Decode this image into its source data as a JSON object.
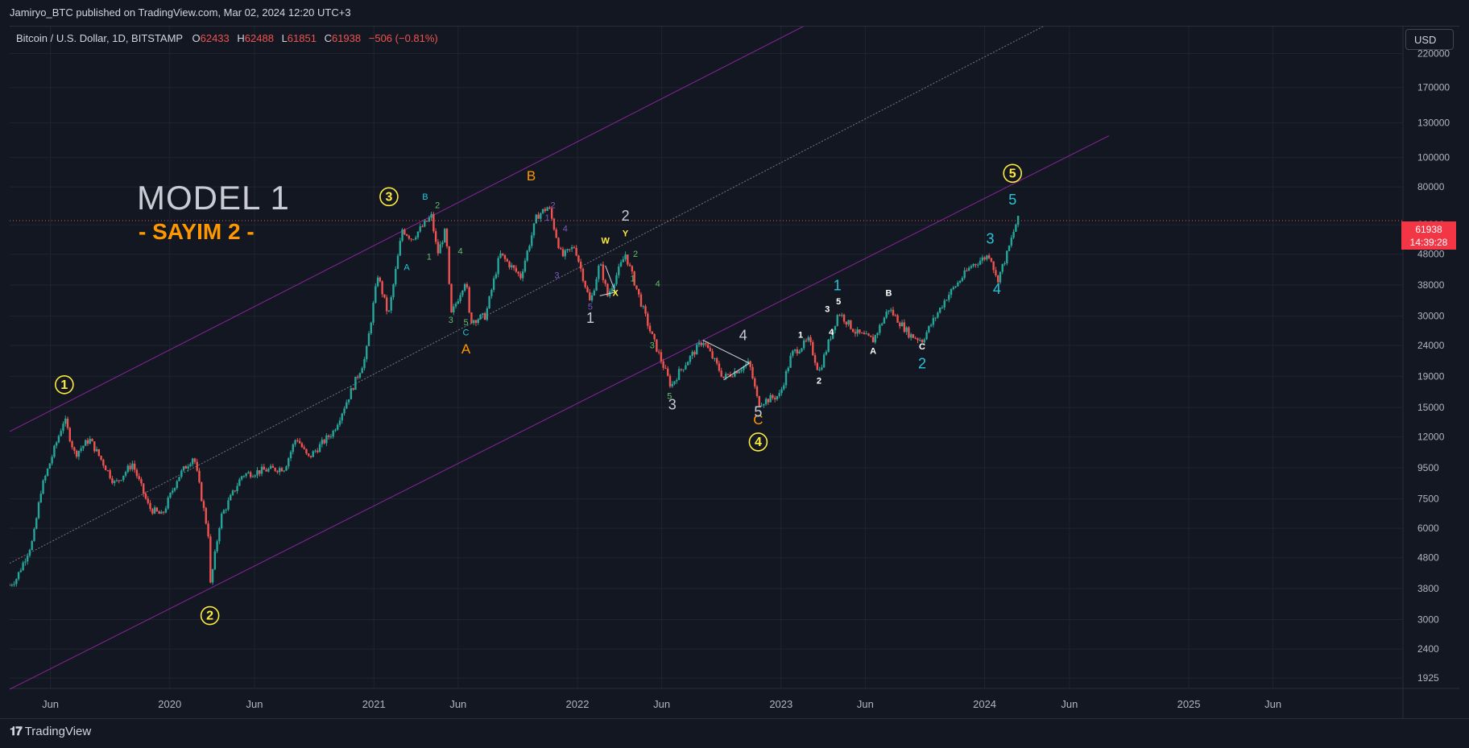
{
  "header": {
    "publish_line": "Jamiryo_BTC published on TradingView.com, Mar 02, 2024 12:20 UTC+3"
  },
  "legend": {
    "symbol": "Bitcoin / U.S. Dollar, 1D, BITSTAMP",
    "open_label": "O",
    "open": "62433",
    "high_label": "H",
    "high": "62488",
    "low_label": "L",
    "low": "61851",
    "close_label": "C",
    "close": "61938",
    "change": "−506 (−0.81%)"
  },
  "currency_button": "USD",
  "price_tag": {
    "price": "61938",
    "countdown": "14:39:28"
  },
  "overlay": {
    "title": "MODEL 1",
    "subtitle": "- SAYIM 2 -"
  },
  "footer": {
    "brand": "TradingView",
    "brand_icon": "tradingview-logo-icon"
  },
  "colors": {
    "background": "#131722",
    "up": "#26a69a",
    "down": "#ef5350",
    "channel": "#9c27b0",
    "accent": "#ff9800",
    "circle": "#ffeb3b",
    "cyan": "#26c6da"
  },
  "chart_data": {
    "type": "candlestick",
    "title": "Bitcoin / U.S. Dollar, 1D, BITSTAMP",
    "y_scale": "log",
    "ylabel": "USD",
    "y_ticks": [
      1925,
      2400,
      3000,
      3800,
      4800,
      6000,
      7500,
      9500,
      12000,
      15000,
      19000,
      24000,
      30000,
      38000,
      48000,
      60000,
      80000,
      100000,
      130000,
      170000,
      220000
    ],
    "y_tick_labels": [
      "1925",
      "2400",
      "3000",
      "3800",
      "4800",
      "6000",
      "7500",
      "9500",
      "12000",
      "15000",
      "19000",
      "24000",
      "30000",
      "38000",
      "48000",
      "60000",
      "80000",
      "100000",
      "130000",
      "170000",
      "220000"
    ],
    "x_ticks": [
      {
        "date": "2019-06-01",
        "label": "Jun"
      },
      {
        "date": "2020-01-01",
        "label": "2020"
      },
      {
        "date": "2020-06-01",
        "label": "Jun"
      },
      {
        "date": "2021-01-01",
        "label": "2021"
      },
      {
        "date": "2021-06-01",
        "label": "Jun"
      },
      {
        "date": "2022-01-01",
        "label": "2022"
      },
      {
        "date": "2022-06-01",
        "label": "Jun"
      },
      {
        "date": "2023-01-01",
        "label": "2023"
      },
      {
        "date": "2023-06-01",
        "label": "Jun"
      },
      {
        "date": "2024-01-01",
        "label": "2024"
      },
      {
        "date": "2024-06-01",
        "label": "Jun"
      },
      {
        "date": "2025-01-01",
        "label": "2025"
      },
      {
        "date": "2025-06-01",
        "label": "Jun"
      }
    ],
    "x_range": [
      "2019-03-20",
      "2026-01-20"
    ],
    "last_price": 61938,
    "price_path": [
      [
        "2019-03-20",
        3900
      ],
      [
        "2019-04-01",
        4100
      ],
      [
        "2019-05-01",
        5500
      ],
      [
        "2019-05-15",
        8000
      ],
      [
        "2019-06-26",
        13800
      ],
      [
        "2019-07-15",
        10500
      ],
      [
        "2019-08-10",
        11800
      ],
      [
        "2019-09-25",
        8400
      ],
      [
        "2019-10-26",
        9800
      ],
      [
        "2019-11-25",
        7000
      ],
      [
        "2019-12-18",
        6600
      ],
      [
        "2020-01-15",
        8800
      ],
      [
        "2020-02-13",
        10400
      ],
      [
        "2020-03-12",
        5500
      ],
      [
        "2020-03-13",
        3800
      ],
      [
        "2020-04-01",
        6500
      ],
      [
        "2020-05-10",
        9000
      ],
      [
        "2020-06-15",
        9300
      ],
      [
        "2020-07-25",
        9500
      ],
      [
        "2020-08-15",
        12000
      ],
      [
        "2020-09-05",
        10200
      ],
      [
        "2020-10-20",
        12500
      ],
      [
        "2020-11-15",
        16000
      ],
      [
        "2020-12-17",
        22000
      ],
      [
        "2021-01-08",
        41000
      ],
      [
        "2021-01-27",
        30000
      ],
      [
        "2021-02-21",
        58000
      ],
      [
        "2021-03-10",
        54000
      ],
      [
        "2021-04-14",
        64000
      ],
      [
        "2021-04-25",
        48000
      ],
      [
        "2021-05-10",
        58000
      ],
      [
        "2021-05-19",
        30000
      ],
      [
        "2021-06-15",
        40000
      ],
      [
        "2021-06-22",
        29000
      ],
      [
        "2021-07-20",
        30000
      ],
      [
        "2021-08-15",
        48000
      ],
      [
        "2021-09-21",
        40500
      ],
      [
        "2021-10-20",
        64000
      ],
      [
        "2021-11-10",
        69000
      ],
      [
        "2021-12-04",
        47000
      ],
      [
        "2021-12-27",
        51000
      ],
      [
        "2022-01-24",
        33000
      ],
      [
        "2022-02-10",
        45000
      ],
      [
        "2022-02-24",
        35000
      ],
      [
        "2022-03-28",
        48000
      ],
      [
        "2022-05-12",
        26500
      ],
      [
        "2022-06-18",
        17600
      ],
      [
        "2022-07-01",
        19500
      ],
      [
        "2022-08-14",
        25000
      ],
      [
        "2022-09-20",
        18800
      ],
      [
        "2022-11-05",
        21000
      ],
      [
        "2022-11-21",
        15500
      ],
      [
        "2022-12-30",
        16500
      ],
      [
        "2023-01-20",
        22500
      ],
      [
        "2023-02-20",
        25000
      ],
      [
        "2023-03-10",
        19600
      ],
      [
        "2023-04-14",
        31000
      ],
      [
        "2023-05-15",
        26500
      ],
      [
        "2023-06-15",
        25000
      ],
      [
        "2023-07-13",
        31800
      ],
      [
        "2023-08-20",
        26000
      ],
      [
        "2023-09-11",
        25000
      ],
      [
        "2023-10-24",
        34500
      ],
      [
        "2023-12-08",
        44000
      ],
      [
        "2024-01-11",
        48000
      ],
      [
        "2024-01-23",
        39000
      ],
      [
        "2024-02-10",
        48000
      ],
      [
        "2024-02-28",
        62000
      ],
      [
        "2024-03-01",
        62400
      ],
      [
        "2024-03-02",
        61938
      ]
    ],
    "channels": [
      {
        "name": "upper",
        "points": [
          [
            "2019-03-20",
            12500
          ],
          [
            "2021-04-14",
            64000
          ]
        ]
      },
      {
        "name": "middle",
        "points": [
          [
            "2019-03-20",
            4600
          ],
          [
            "2021-07-20",
            30000
          ]
        ]
      },
      {
        "name": "lower",
        "points": [
          [
            "2020-03-13",
            3800
          ],
          [
            "2022-08-14",
            25000
          ]
        ]
      }
    ],
    "wave_labels": [
      {
        "text": "1",
        "date": "2019-06-26",
        "price": 17300,
        "style": "circle"
      },
      {
        "text": "2",
        "date": "2020-03-13",
        "price": 3000,
        "style": "circle"
      },
      {
        "text": "3",
        "date": "2021-01-28",
        "price": 72000,
        "style": "circle"
      },
      {
        "text": "4",
        "date": "2022-11-21",
        "price": 11200,
        "style": "circle"
      },
      {
        "text": "5",
        "date": "2024-02-20",
        "price": 86000,
        "style": "circle"
      },
      {
        "text": "A",
        "date": "2021-06-15",
        "price": 22600,
        "style": "orange"
      },
      {
        "text": "B",
        "date": "2021-10-10",
        "price": 84000,
        "style": "orange"
      },
      {
        "text": "C",
        "date": "2022-11-21",
        "price": 13200,
        "style": "orange"
      },
      {
        "text": "1",
        "date": "2022-01-24",
        "price": 28500,
        "style": "white-lg"
      },
      {
        "text": "2",
        "date": "2022-03-28",
        "price": 62000,
        "style": "white-lg"
      },
      {
        "text": "3",
        "date": "2022-06-20",
        "price": 14800,
        "style": "white-lg"
      },
      {
        "text": "4",
        "date": "2022-10-25",
        "price": 25000,
        "style": "white-lg"
      },
      {
        "text": "5",
        "date": "2022-11-21",
        "price": 14000,
        "style": "white-lg"
      },
      {
        "text": "W",
        "date": "2022-02-20",
        "price": 52000,
        "style": "yellow-sm"
      },
      {
        "text": "X",
        "date": "2022-03-10",
        "price": 35000,
        "style": "yellow-sm"
      },
      {
        "text": "Y",
        "date": "2022-03-28",
        "price": 55000,
        "style": "yellow-sm"
      },
      {
        "text": "A",
        "date": "2021-03-01",
        "price": 42500,
        "style": "cyan-sm"
      },
      {
        "text": "B",
        "date": "2021-04-03",
        "price": 72500,
        "style": "cyan-sm"
      },
      {
        "text": "C",
        "date": "2021-06-15",
        "price": 25900,
        "style": "cyan-sm"
      },
      {
        "text": "2",
        "date": "2021-04-25",
        "price": 68000,
        "style": "green-sm"
      },
      {
        "text": "1",
        "date": "2021-04-10",
        "price": 46000,
        "style": "green-sm"
      },
      {
        "text": "4",
        "date": "2021-06-05",
        "price": 48000,
        "style": "green-sm"
      },
      {
        "text": "3",
        "date": "2021-05-19",
        "price": 28500,
        "style": "green-sm"
      },
      {
        "text": "5",
        "date": "2021-06-15",
        "price": 28000,
        "style": "green-sm"
      },
      {
        "text": "1",
        "date": "2021-11-08",
        "price": 62000,
        "style": "purple-sm"
      },
      {
        "text": "2",
        "date": "2021-11-18",
        "price": 68000,
        "style": "purple-sm"
      },
      {
        "text": "4",
        "date": "2021-12-10",
        "price": 57000,
        "style": "purple-sm"
      },
      {
        "text": "3",
        "date": "2021-11-25",
        "price": 40000,
        "style": "purple-sm"
      },
      {
        "text": "5",
        "date": "2022-01-24",
        "price": 31500,
        "style": "purple-sm"
      },
      {
        "text": "1",
        "date": "2022-04-10",
        "price": 39000,
        "style": "green-sm"
      },
      {
        "text": "2",
        "date": "2022-04-15",
        "price": 47000,
        "style": "green-sm"
      },
      {
        "text": "4",
        "date": "2022-05-25",
        "price": 37500,
        "style": "green-sm"
      },
      {
        "text": "3",
        "date": "2022-05-15",
        "price": 23500,
        "style": "green-sm"
      },
      {
        "text": "5",
        "date": "2022-06-15",
        "price": 16000,
        "style": "green-sm"
      },
      {
        "text": "1",
        "date": "2023-02-05",
        "price": 25500,
        "style": "white-sm"
      },
      {
        "text": "2",
        "date": "2023-03-10",
        "price": 18000,
        "style": "white-sm"
      },
      {
        "text": "3",
        "date": "2023-03-25",
        "price": 31000,
        "style": "white-sm"
      },
      {
        "text": "4",
        "date": "2023-04-01",
        "price": 26000,
        "style": "white-sm"
      },
      {
        "text": "5",
        "date": "2023-04-14",
        "price": 32800,
        "style": "white-sm"
      },
      {
        "text": "1",
        "date": "2023-04-12",
        "price": 36500,
        "style": "cyan-lg"
      },
      {
        "text": "A",
        "date": "2023-06-15",
        "price": 22500,
        "style": "white-sm"
      },
      {
        "text": "B",
        "date": "2023-07-13",
        "price": 35000,
        "style": "white-sm"
      },
      {
        "text": "C",
        "date": "2023-09-11",
        "price": 23300,
        "style": "white-sm"
      },
      {
        "text": "2",
        "date": "2023-09-11",
        "price": 20200,
        "style": "cyan-lg"
      },
      {
        "text": "3",
        "date": "2024-01-11",
        "price": 52000,
        "style": "cyan-lg"
      },
      {
        "text": "4",
        "date": "2024-01-23",
        "price": 35500,
        "style": "cyan-lg"
      },
      {
        "text": "5",
        "date": "2024-02-20",
        "price": 70000,
        "style": "cyan-lg"
      }
    ]
  }
}
